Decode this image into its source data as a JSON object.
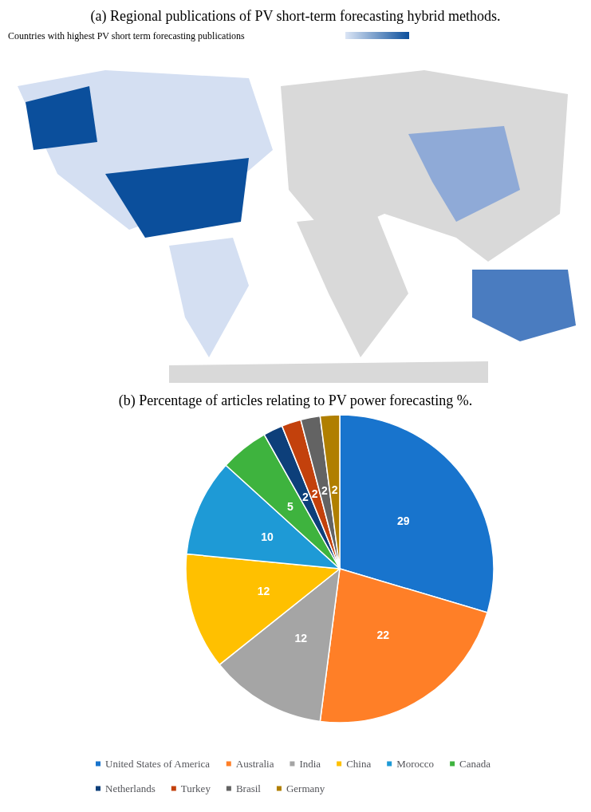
{
  "chart_data": [
    {
      "type": "other",
      "title": "(a) Regional publications of PV short-term forecasting hybrid methods.",
      "annotations": [
        "Countries with highest PV short term forecasting publications"
      ]
    },
    {
      "type": "pie",
      "title": "(b) Percentage of articles relating to PV power forecasting %.",
      "categories": [
        "United States of America",
        "Australia",
        "India",
        "China",
        "Morocco",
        "Canada",
        "Netherlands",
        "Turkey",
        "Brasil",
        "Germany"
      ],
      "values": [
        29,
        22,
        12,
        12,
        10,
        5,
        2,
        2,
        2,
        2
      ],
      "colors": [
        "#1874cd",
        "#ff7f27",
        "#a5a5a5",
        "#ffc000",
        "#1e9ad6",
        "#3eb33e",
        "#0d3f7a",
        "#c3410c",
        "#636363",
        "#b07f00"
      ],
      "data_labels": true,
      "legend": "bottom"
    }
  ]
}
